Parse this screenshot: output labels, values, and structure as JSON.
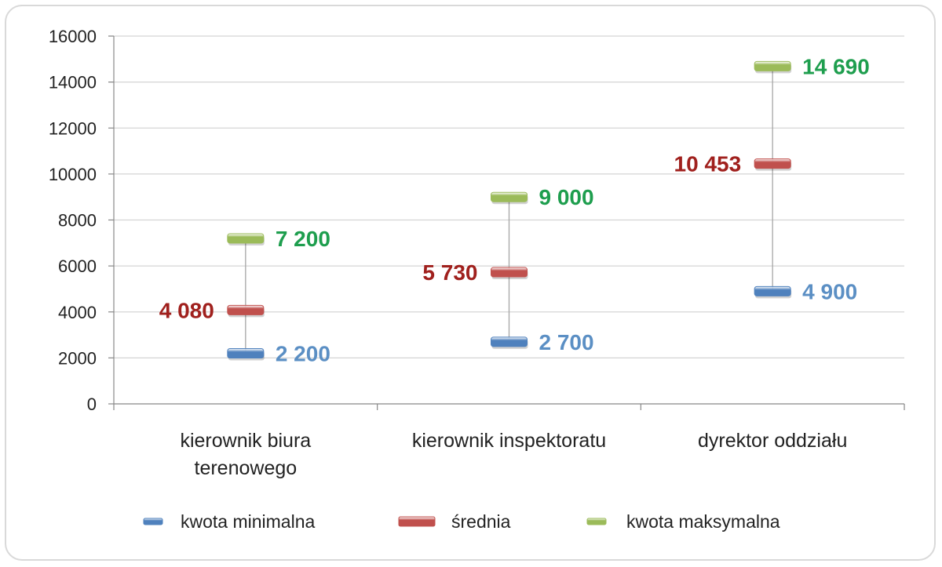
{
  "chart_data": {
    "type": "high-low marker",
    "categories": [
      [
        "kierownik biura",
        "terenowego"
      ],
      [
        "kierownik inspektoratu"
      ],
      [
        "dyrektor oddziału"
      ]
    ],
    "series": [
      {
        "name": "kwota minimalna",
        "values": [
          2200,
          2700,
          4900
        ],
        "labels": [
          "2 200",
          "2 700",
          "4 900"
        ],
        "color": "#4f81bd",
        "label_color": "#5b8fc4",
        "label_side": "right"
      },
      {
        "name": "średnia",
        "values": [
          4080,
          5730,
          10453
        ],
        "labels": [
          "4 080",
          "5 730",
          "10 453"
        ],
        "color": "#c0504d",
        "label_color": "#a0201d",
        "label_side": "left"
      },
      {
        "name": "kwota maksymalna",
        "values": [
          7200,
          9000,
          14690
        ],
        "labels": [
          "7 200",
          "9 000",
          "14 690"
        ],
        "color": "#9bbb59",
        "label_color": "#1e9e4e",
        "label_side": "right"
      }
    ],
    "ylim": [
      0,
      16000
    ],
    "yticks": [
      "0",
      "2000",
      "4000",
      "6000",
      "8000",
      "10000",
      "12000",
      "14000",
      "16000"
    ],
    "grid": true,
    "legend": "bottom"
  }
}
